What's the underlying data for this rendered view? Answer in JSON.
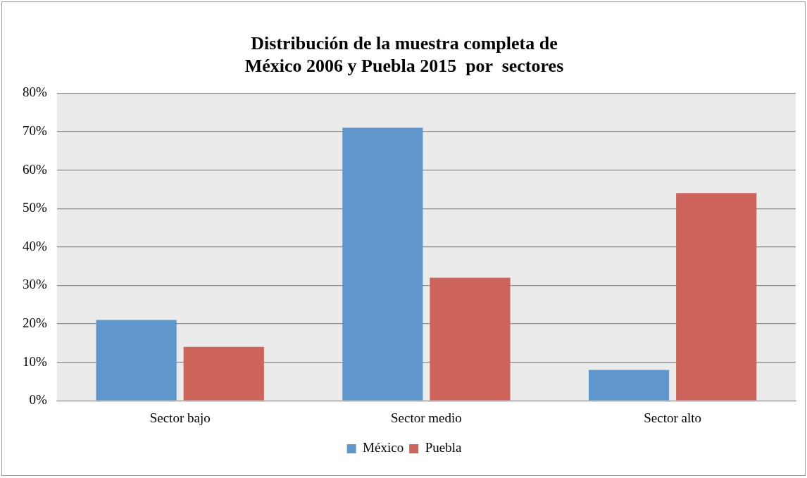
{
  "chart_data": {
    "type": "bar",
    "title": "Distribución de la muestra completa de\nMéxico 2006 y Puebla 2015  por  sectores",
    "categories": [
      "Sector bajo",
      "Sector medio",
      "Sector alto"
    ],
    "series": [
      {
        "name": "México",
        "color": "#5f96cc",
        "values": [
          21,
          71,
          8
        ]
      },
      {
        "name": "Puebla",
        "color": "#cd645c",
        "values": [
          14,
          32,
          54
        ]
      }
    ],
    "ylim": [
      0,
      80
    ],
    "yticks": [
      {
        "value": 0,
        "label": "0%"
      },
      {
        "value": 10,
        "label": "10%"
      },
      {
        "value": 20,
        "label": "20%"
      },
      {
        "value": 30,
        "label": "30%"
      },
      {
        "value": 40,
        "label": "40%"
      },
      {
        "value": 50,
        "label": "50%"
      },
      {
        "value": 60,
        "label": "60%"
      },
      {
        "value": 70,
        "label": "70%"
      },
      {
        "value": 80,
        "label": "80%"
      }
    ],
    "grid": "y",
    "legend": "bottom"
  }
}
